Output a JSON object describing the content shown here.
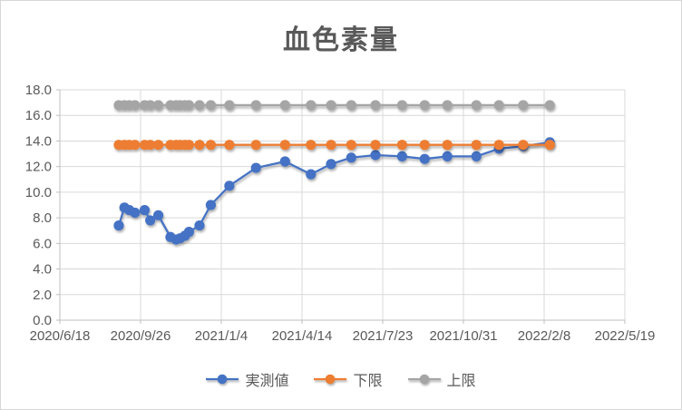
{
  "title": "血色素量",
  "chart_data": {
    "type": "line",
    "title": "血色素量",
    "x_type": "date",
    "grid": true,
    "legend_position": "bottom",
    "y_axis": {
      "min": 0,
      "max": 18,
      "step": 2,
      "tick_labels": [
        "18.0",
        "16.0",
        "14.0",
        "12.0",
        "10.0",
        "8.0",
        "6.0",
        "4.0",
        "2.0",
        "0.0"
      ]
    },
    "x_axis_ticks": [
      "2020/6/18",
      "2020/9/26",
      "2021/1/4",
      "2021/4/14",
      "2021/7/23",
      "2021/10/31",
      "2022/2/8",
      "2022/5/19"
    ],
    "x": [
      "2020/8/30",
      "2020/9/6",
      "2020/9/12",
      "2020/9/19",
      "2020/10/1",
      "2020/10/8",
      "2020/10/18",
      "2020/11/2",
      "2020/11/9",
      "2020/11/14",
      "2020/11/20",
      "2020/11/25",
      "2020/12/8",
      "2020/12/22",
      "2021/1/14",
      "2021/2/16",
      "2021/3/24",
      "2021/4/25",
      "2021/5/20",
      "2021/6/14",
      "2021/7/14",
      "2021/8/16",
      "2021/9/13",
      "2021/10/11",
      "2021/11/16",
      "2021/12/14",
      "2022/1/13",
      "2022/2/15"
    ],
    "series": [
      {
        "name": "実測値",
        "key": "measured",
        "color": "#4472C4",
        "values": [
          7.4,
          8.8,
          8.6,
          8.4,
          8.6,
          7.8,
          8.2,
          6.5,
          6.3,
          6.4,
          6.6,
          6.9,
          7.4,
          9.0,
          10.5,
          11.9,
          12.4,
          11.4,
          12.2,
          12.7,
          12.9,
          12.8,
          12.6,
          12.8,
          12.8,
          13.4,
          13.6,
          13.9
        ]
      },
      {
        "name": "下限",
        "key": "lower",
        "color": "#ED7D31",
        "values": [
          13.7,
          13.7,
          13.7,
          13.7,
          13.7,
          13.7,
          13.7,
          13.7,
          13.7,
          13.7,
          13.7,
          13.7,
          13.7,
          13.7,
          13.7,
          13.7,
          13.7,
          13.7,
          13.7,
          13.7,
          13.7,
          13.7,
          13.7,
          13.7,
          13.7,
          13.7,
          13.7,
          13.7
        ]
      },
      {
        "name": "上限",
        "key": "upper",
        "color": "#A5A5A5",
        "values": [
          16.8,
          16.8,
          16.8,
          16.8,
          16.8,
          16.8,
          16.8,
          16.8,
          16.8,
          16.8,
          16.8,
          16.8,
          16.8,
          16.8,
          16.8,
          16.8,
          16.8,
          16.8,
          16.8,
          16.8,
          16.8,
          16.8,
          16.8,
          16.8,
          16.8,
          16.8,
          16.8,
          16.8
        ]
      }
    ],
    "colors": {
      "grid": "#D9D9D9",
      "axis_line": "#BFBFBF",
      "text": "#595959",
      "background": "#FFFFFF"
    }
  }
}
